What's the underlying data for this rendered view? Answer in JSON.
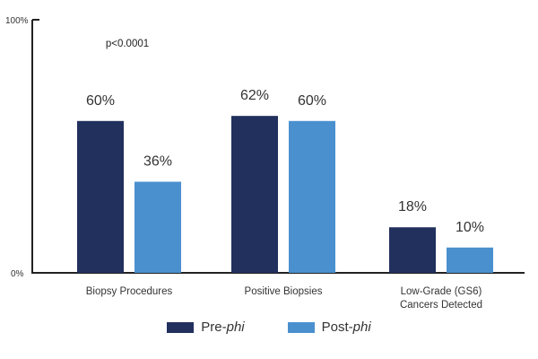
{
  "chart_data": {
    "type": "bar",
    "categories": [
      "Biopsy Procedures",
      "Positive Biopsies",
      "Low-Grade (GS6)\nCancers Detected"
    ],
    "series": [
      {
        "name": "Pre-phi",
        "values": [
          60,
          62,
          18
        ],
        "color": "#22305e"
      },
      {
        "name": "Post-phi",
        "values": [
          36,
          60,
          10
        ],
        "color": "#4a90cf"
      }
    ],
    "value_labels": [
      [
        "60%",
        "62%",
        "18%"
      ],
      [
        "36%",
        "60%",
        "10%"
      ]
    ],
    "ylim": [
      0,
      100
    ],
    "y_ticks": [
      "0%",
      "100%"
    ],
    "annotation": "p<0.0001",
    "grid": false,
    "legend_position": "bottom-center",
    "xlabel": "",
    "ylabel": "",
    "title": ""
  },
  "legend": {
    "pre_prefix": "Pre-",
    "pre_italic": "phi",
    "post_prefix": "Post-",
    "post_italic": "phi"
  }
}
